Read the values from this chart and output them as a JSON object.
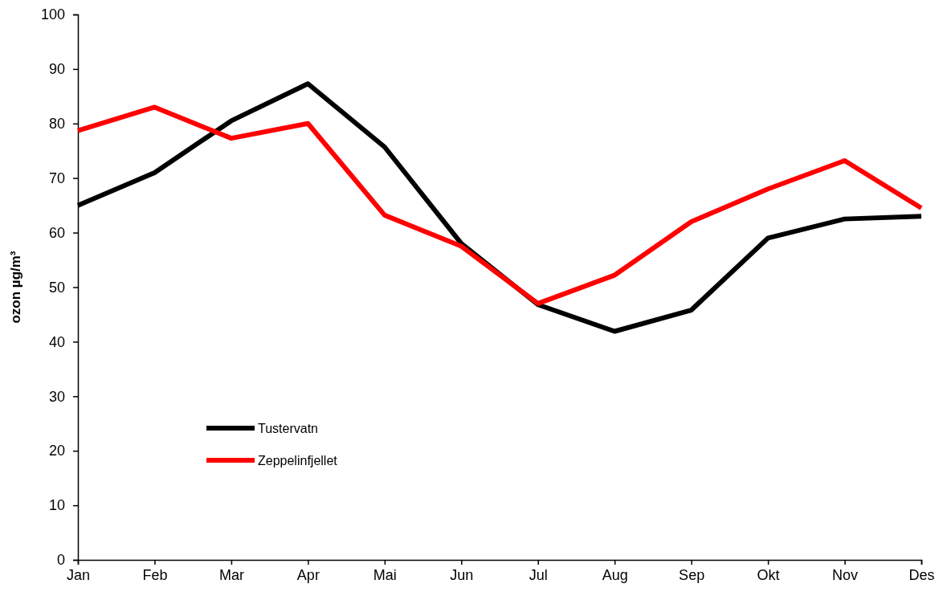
{
  "chart_data": {
    "type": "line",
    "ylabel": "ozon µg/m³",
    "categories": [
      "Jan",
      "Feb",
      "Mar",
      "Apr",
      "Mai",
      "Jun",
      "Jul",
      "Aug",
      "Sep",
      "Okt",
      "Nov",
      "Des"
    ],
    "series": [
      {
        "name": "Tustervatn",
        "color": "#000000",
        "values": [
          65,
          71,
          80.5,
          87.3,
          75.7,
          58,
          46.8,
          41.9,
          45.8,
          59,
          62.5,
          63
        ]
      },
      {
        "name": "Zeppelinfjellet",
        "color": "#ff0000",
        "values": [
          78.7,
          83,
          77.3,
          80,
          63.2,
          57.5,
          47,
          52.2,
          62,
          68,
          73.2,
          64.5
        ]
      }
    ],
    "ylim": [
      0,
      100
    ],
    "yticks": [
      0,
      10,
      20,
      30,
      40,
      50,
      60,
      70,
      80,
      90,
      100
    ],
    "grid": false,
    "legend": "bottom left",
    "marker": "none",
    "line_style": "solid"
  }
}
